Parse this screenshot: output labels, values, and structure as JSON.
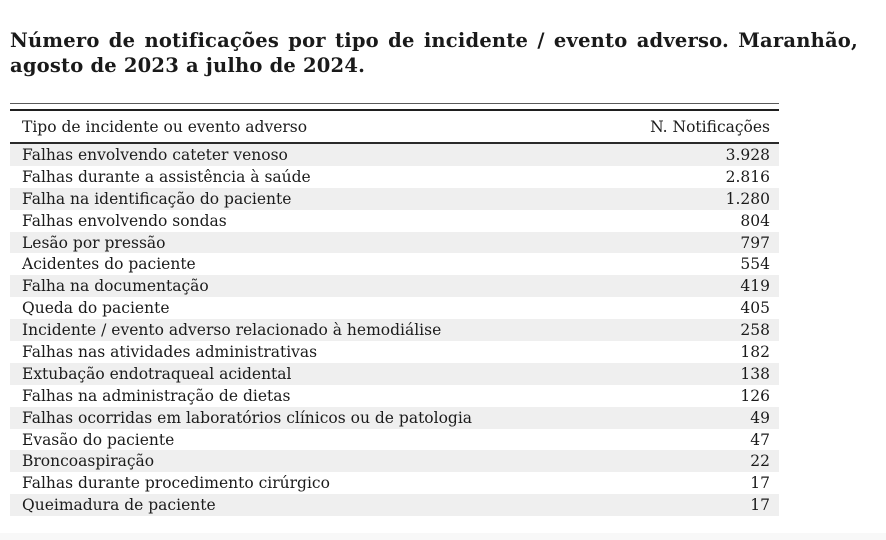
{
  "title": {
    "line1": "Número de notificações por tipo de incidente / evento adverso.  Maranhão,",
    "line2": "agosto de 2023 a julho de 2024."
  },
  "table": {
    "headers": [
      "Tipo de incidente ou evento adverso",
      "N. Notificações"
    ],
    "rows": [
      {
        "label": "Falhas envolvendo cateter venoso",
        "value": "3.928"
      },
      {
        "label": "Falhas durante a assistência à saúde",
        "value": "2.816"
      },
      {
        "label": "Falha na identificação do paciente",
        "value": "1.280"
      },
      {
        "label": "Falhas envolvendo sondas",
        "value": "804"
      },
      {
        "label": "Lesão por pressão",
        "value": "797"
      },
      {
        "label": "Acidentes do paciente",
        "value": "554"
      },
      {
        "label": "Falha na documentação",
        "value": "419"
      },
      {
        "label": "Queda do paciente",
        "value": "405"
      },
      {
        "label": "Incidente / evento adverso relacionado à hemodiálise",
        "value": "258"
      },
      {
        "label": "Falhas nas atividades administrativas",
        "value": "182"
      },
      {
        "label": "Extubação endotraqueal acidental",
        "value": "138"
      },
      {
        "label": "Falhas na administração de dietas",
        "value": "126"
      },
      {
        "label": "Falhas ocorridas em laboratórios clínicos ou de patologia",
        "value": "49"
      },
      {
        "label": "Evasão do paciente",
        "value": "47"
      },
      {
        "label": "Broncoaspiração",
        "value": "22"
      },
      {
        "label": "Falhas durante procedimento cirúrgico",
        "value": "17"
      },
      {
        "label": "Queimadura de paciente",
        "value": "17"
      }
    ]
  },
  "colors": {
    "row_shade": "#efefef",
    "text": "#1b1b1b",
    "rule_dark": "#1f1f1f"
  }
}
